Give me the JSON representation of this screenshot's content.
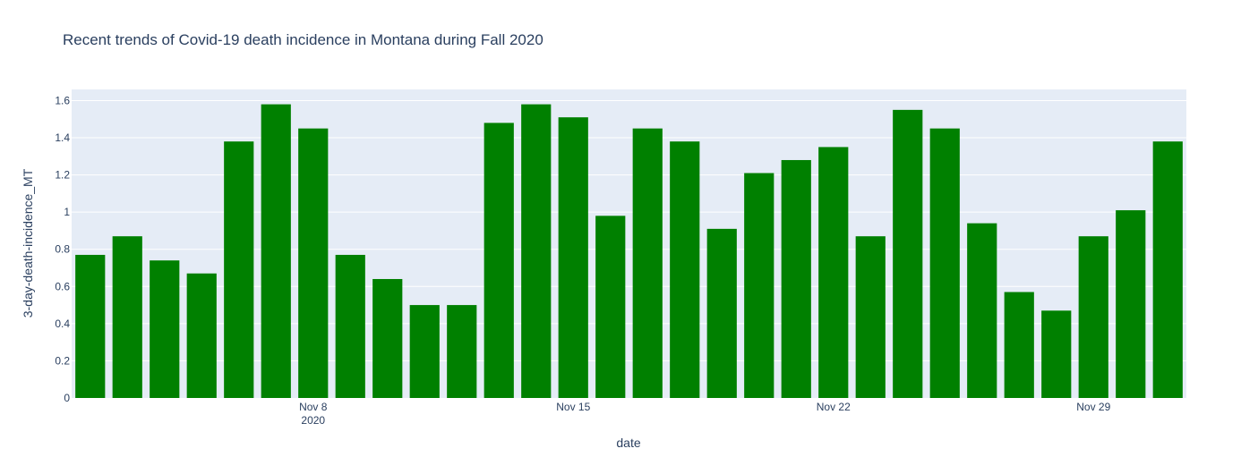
{
  "chart_data": {
    "type": "bar",
    "title": "Recent trends of Covid-19 death incidence in Montana during Fall 2020",
    "xlabel": "date",
    "ylabel": "3-day-death-incidence_MT",
    "x": [
      "2020-11-02",
      "2020-11-03",
      "2020-11-04",
      "2020-11-05",
      "2020-11-06",
      "2020-11-07",
      "2020-11-08",
      "2020-11-09",
      "2020-11-10",
      "2020-11-11",
      "2020-11-12",
      "2020-11-13",
      "2020-11-14",
      "2020-11-15",
      "2020-11-16",
      "2020-11-17",
      "2020-11-18",
      "2020-11-19",
      "2020-11-20",
      "2020-11-21",
      "2020-11-22",
      "2020-11-23",
      "2020-11-24",
      "2020-11-25",
      "2020-11-26",
      "2020-11-27",
      "2020-11-28",
      "2020-11-29",
      "2020-11-30",
      "2020-12-01"
    ],
    "values": [
      0.77,
      0.87,
      0.74,
      0.67,
      1.38,
      1.58,
      1.45,
      0.77,
      0.64,
      0.5,
      0.5,
      1.48,
      1.58,
      1.51,
      0.98,
      1.45,
      1.38,
      0.91,
      1.21,
      1.28,
      1.35,
      0.87,
      1.55,
      1.45,
      0.94,
      0.57,
      0.47,
      0.87,
      1.01,
      1.38
    ],
    "ylim": [
      0,
      1.66
    ],
    "yticks": [
      "0",
      "0.2",
      "0.4",
      "0.6",
      "0.8",
      "1",
      "1.2",
      "1.4",
      "1.6"
    ],
    "xticks": [
      {
        "date": "2020-11-08",
        "label": "Nov 8",
        "sublabel": "2020"
      },
      {
        "date": "2020-11-15",
        "label": "Nov 15",
        "sublabel": ""
      },
      {
        "date": "2020-11-22",
        "label": "Nov 22",
        "sublabel": ""
      },
      {
        "date": "2020-11-29",
        "label": "Nov 29",
        "sublabel": ""
      }
    ],
    "bar_color": "#008000",
    "plot_bg": "#e5ecf6",
    "grid": true
  }
}
